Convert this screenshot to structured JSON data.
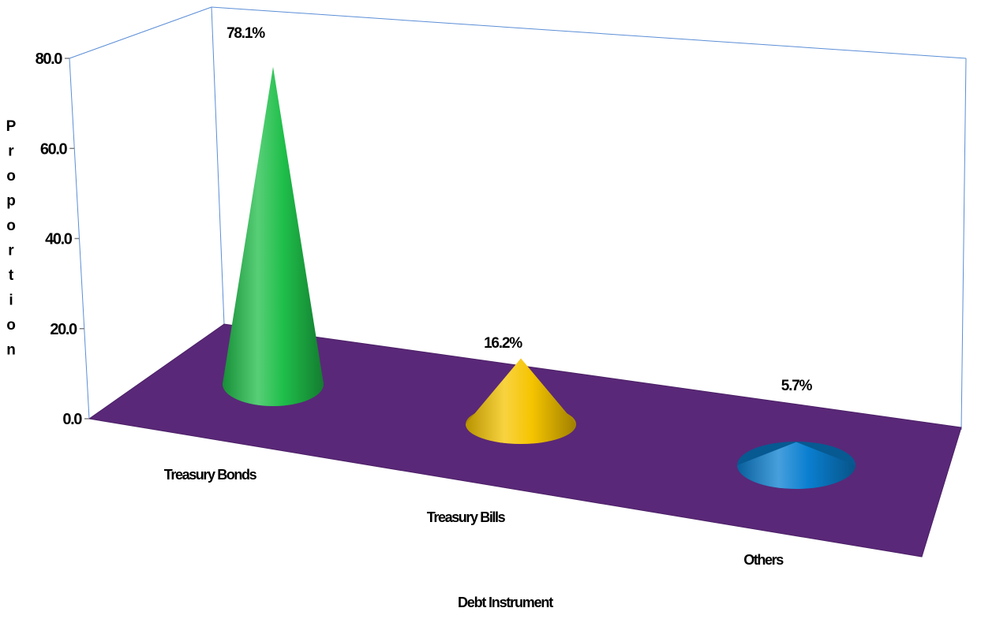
{
  "chart_data": {
    "type": "bar",
    "style": "3d-cone",
    "categories": [
      "Treasury Bonds",
      "Treasury Bills",
      "Others"
    ],
    "values": [
      78.1,
      16.2,
      5.7
    ],
    "data_labels": [
      "78.1%",
      "16.2%",
      "5.7%"
    ],
    "colors": [
      "#1fbf4a",
      "#f5c400",
      "#0a7fd0"
    ],
    "floor_color": "#5a2878",
    "frame_color": "#5b8ed6",
    "title": "",
    "xlabel": "Debt Instrument",
    "ylabel": "Proportion",
    "ylim": [
      0,
      80
    ],
    "y_ticks": [
      "0.0",
      "20.0",
      "40.0",
      "60.0",
      "80.0"
    ],
    "y_tick_values": [
      0,
      20,
      40,
      60,
      80
    ],
    "grid": false,
    "legend": "none"
  }
}
